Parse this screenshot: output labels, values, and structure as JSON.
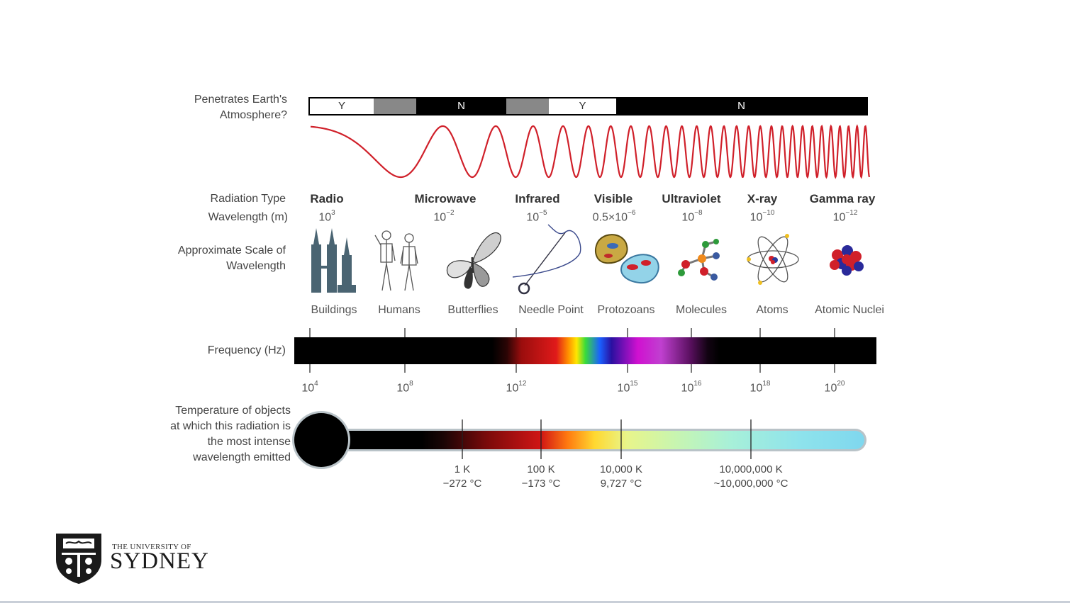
{
  "labels": {
    "atmosphere": "Penetrates Earth's Atmosphere?",
    "radiation_type": "Radiation Type",
    "wavelength": "Wavelength (m)",
    "scale": "Approximate Scale of Wavelength",
    "frequency": "Frequency (Hz)",
    "temperature": "Temperature of objects at which this radiation is the most intense wavelength emitted"
  },
  "atmosphere_segments": [
    "Y",
    "N",
    "Y",
    "N"
  ],
  "radiation_types": [
    "Radio",
    "Microwave",
    "Infrared",
    "Visible",
    "Ultraviolet",
    "X-ray",
    "Gamma ray"
  ],
  "wavelengths": [
    {
      "base": "10",
      "exp": "3"
    },
    {
      "base": "10",
      "exp": "−2"
    },
    {
      "base": "10",
      "exp": "−5"
    },
    {
      "base": "0.5×10",
      "exp": "−6"
    },
    {
      "base": "10",
      "exp": "−8"
    },
    {
      "base": "10",
      "exp": "−10"
    },
    {
      "base": "10",
      "exp": "−12"
    }
  ],
  "scale_objects": [
    "Buildings",
    "Humans",
    "Butterflies",
    "Needle Point",
    "Protozoans",
    "Molecules",
    "Atoms",
    "Atomic Nuclei"
  ],
  "scale_icons": [
    "buildings-icon",
    "humans-icon",
    "butterfly-icon",
    "needle-icon",
    "protozoa-icon",
    "molecule-icon",
    "atom-icon",
    "nucleus-icon"
  ],
  "frequencies": [
    {
      "base": "10",
      "exp": "4"
    },
    {
      "base": "10",
      "exp": "8"
    },
    {
      "base": "10",
      "exp": "12"
    },
    {
      "base": "10",
      "exp": "15"
    },
    {
      "base": "10",
      "exp": "16"
    },
    {
      "base": "10",
      "exp": "18"
    },
    {
      "base": "10",
      "exp": "20"
    }
  ],
  "temperatures": [
    {
      "kelvin": "1 K",
      "celsius": "−272 °C"
    },
    {
      "kelvin": "100 K",
      "celsius": "−173 °C"
    },
    {
      "kelvin": "10,000 K",
      "celsius": "9,727 °C"
    },
    {
      "kelvin": "10,000,000 K",
      "celsius": "~10,000,000 °C"
    }
  ],
  "logo": {
    "line1": "THE UNIVERSITY OF",
    "line2": "SYDNEY"
  },
  "colors": {
    "wave": "#d0202a",
    "bar_black": "#000000",
    "bar_gray": "#888888",
    "thermo_end": "#7fd7ee"
  }
}
